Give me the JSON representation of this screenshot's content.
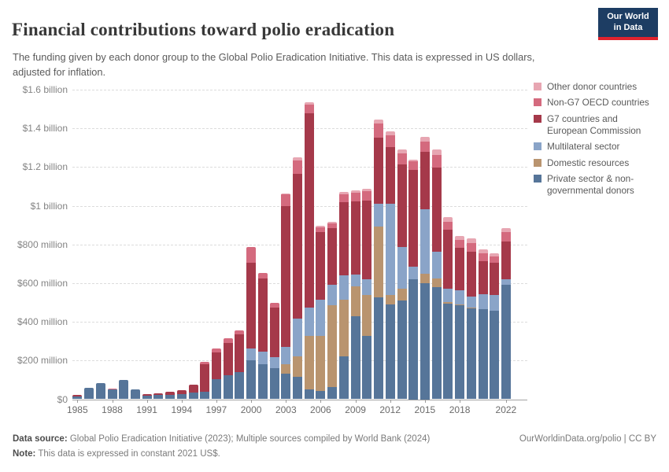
{
  "header": {
    "title": "Financial contributions toward polio eradication",
    "subtitle": "The funding given by each donor group to the Global Polio Eradication Initiative. This data is expressed in US dollars, adjusted for inflation.",
    "logo_line1": "Our World",
    "logo_line2": "in Data",
    "logo_bg": "#1d3d63",
    "logo_accent": "#e0232e"
  },
  "chart_data": {
    "type": "bar",
    "stacked": true,
    "title": "Financial contributions toward polio eradication",
    "xlabel": "",
    "ylabel": "",
    "unit": "million constant 2021 US$",
    "ylim_millions": [
      0,
      1600
    ],
    "grid": "dashed horizontal",
    "legend_position": "right",
    "years": [
      1985,
      1986,
      1987,
      1988,
      1989,
      1990,
      1991,
      1992,
      1993,
      1994,
      1995,
      1996,
      1997,
      1998,
      1999,
      2000,
      2001,
      2002,
      2003,
      2004,
      2005,
      2006,
      2007,
      2008,
      2009,
      2010,
      2011,
      2012,
      2013,
      2014,
      2015,
      2016,
      2017,
      2018,
      2019,
      2020,
      2021,
      2022
    ],
    "series": [
      {
        "name": "Private sector & non-governmental donors",
        "color": "#567599",
        "values": [
          15,
          58,
          85,
          50,
          100,
          50,
          20,
          21,
          24,
          28,
          34,
          40,
          104,
          125,
          138,
          200,
          180,
          160,
          130,
          116,
          51,
          44,
          64,
          220,
          430,
          328,
          528,
          490,
          510,
          620,
          600,
          580,
          495,
          485,
          470,
          464,
          457,
          590
        ]
      },
      {
        "name": "Domestic resources",
        "color": "#b9946f",
        "values": [
          0,
          0,
          0,
          0,
          0,
          0,
          0,
          0,
          0,
          0,
          0,
          0,
          0,
          0,
          0,
          0,
          0,
          0,
          50,
          104,
          277,
          284,
          420,
          294,
          153,
          211,
          363,
          50,
          60,
          0,
          50,
          45,
          8,
          5,
          5,
          0,
          0,
          0
        ]
      },
      {
        "name": "Multilateral sector",
        "color": "#8aa4c8",
        "values": [
          0,
          0,
          0,
          0,
          0,
          0,
          0,
          0,
          0,
          0,
          0,
          0,
          0,
          0,
          0,
          60,
          65,
          55,
          90,
          197,
          146,
          186,
          109,
          126,
          60,
          80,
          119,
          470,
          215,
          65,
          330,
          137,
          67,
          73,
          57,
          77,
          81,
          30
        ]
      },
      {
        "name": "G7 countries and European Commission",
        "color": "#a5394a",
        "values": [
          7,
          0,
          0,
          0,
          0,
          0,
          8,
          10,
          13,
          19,
          40,
          142,
          137,
          165,
          196,
          447,
          380,
          260,
          730,
          748,
          1003,
          350,
          291,
          380,
          380,
          406,
          341,
          295,
          430,
          500,
          300,
          436,
          307,
          219,
          229,
          174,
          167,
          193
        ]
      },
      {
        "name": "Non-G7 OECD countries",
        "color": "#d46a7e",
        "values": [
          0,
          0,
          0,
          5,
          0,
          0,
          0,
          0,
          0,
          0,
          0,
          11,
          20,
          24,
          20,
          80,
          28,
          25,
          60,
          70,
          45,
          25,
          25,
          40,
          45,
          50,
          75,
          60,
          55,
          45,
          50,
          65,
          41,
          41,
          45,
          41,
          34,
          51
        ]
      },
      {
        "name": "Other donor countries",
        "color": "#e7a6b2",
        "values": [
          0,
          0,
          0,
          0,
          0,
          0,
          0,
          0,
          0,
          0,
          0,
          0,
          0,
          0,
          0,
          0,
          0,
          0,
          5,
          15,
          15,
          8,
          8,
          10,
          12,
          12,
          20,
          20,
          20,
          8,
          28,
          30,
          23,
          20,
          24,
          20,
          16,
          20
        ]
      }
    ],
    "y_axis_ticks": [
      {
        "value": 0,
        "label": "$0"
      },
      {
        "value": 200,
        "label": "$200 million"
      },
      {
        "value": 400,
        "label": "$400 million"
      },
      {
        "value": 600,
        "label": "$600 million"
      },
      {
        "value": 800,
        "label": "$800 million"
      },
      {
        "value": 1000,
        "label": "$1 billion"
      },
      {
        "value": 1200,
        "label": "$1.2 billion"
      },
      {
        "value": 1400,
        "label": "$1.4 billion"
      },
      {
        "value": 1600,
        "label": "$1.6 billion"
      }
    ],
    "x_tick_years": [
      1985,
      1988,
      1991,
      1994,
      1997,
      2000,
      2003,
      2006,
      2009,
      2012,
      2015,
      2018,
      2022
    ]
  },
  "legend": {
    "items": [
      {
        "label": "Other donor countries",
        "color": "#e7a6b2"
      },
      {
        "label": "Non-G7 OECD countries",
        "color": "#d46a7e"
      },
      {
        "label": "G7 countries and European Commission",
        "color": "#a5394a"
      },
      {
        "label": "Multilateral sector",
        "color": "#8aa4c8"
      },
      {
        "label": "Domestic resources",
        "color": "#b9946f"
      },
      {
        "label": "Private sector & non-governmental donors",
        "color": "#567599"
      }
    ]
  },
  "footer": {
    "source_label": "Data source:",
    "source_text": " Global Polio Eradication Initiative (2023); Multiple sources compiled by World Bank (2024)",
    "note_label": "Note:",
    "note_text": " This data is expressed in constant 2021 US$.",
    "license": "OurWorldinData.org/polio | CC BY"
  }
}
